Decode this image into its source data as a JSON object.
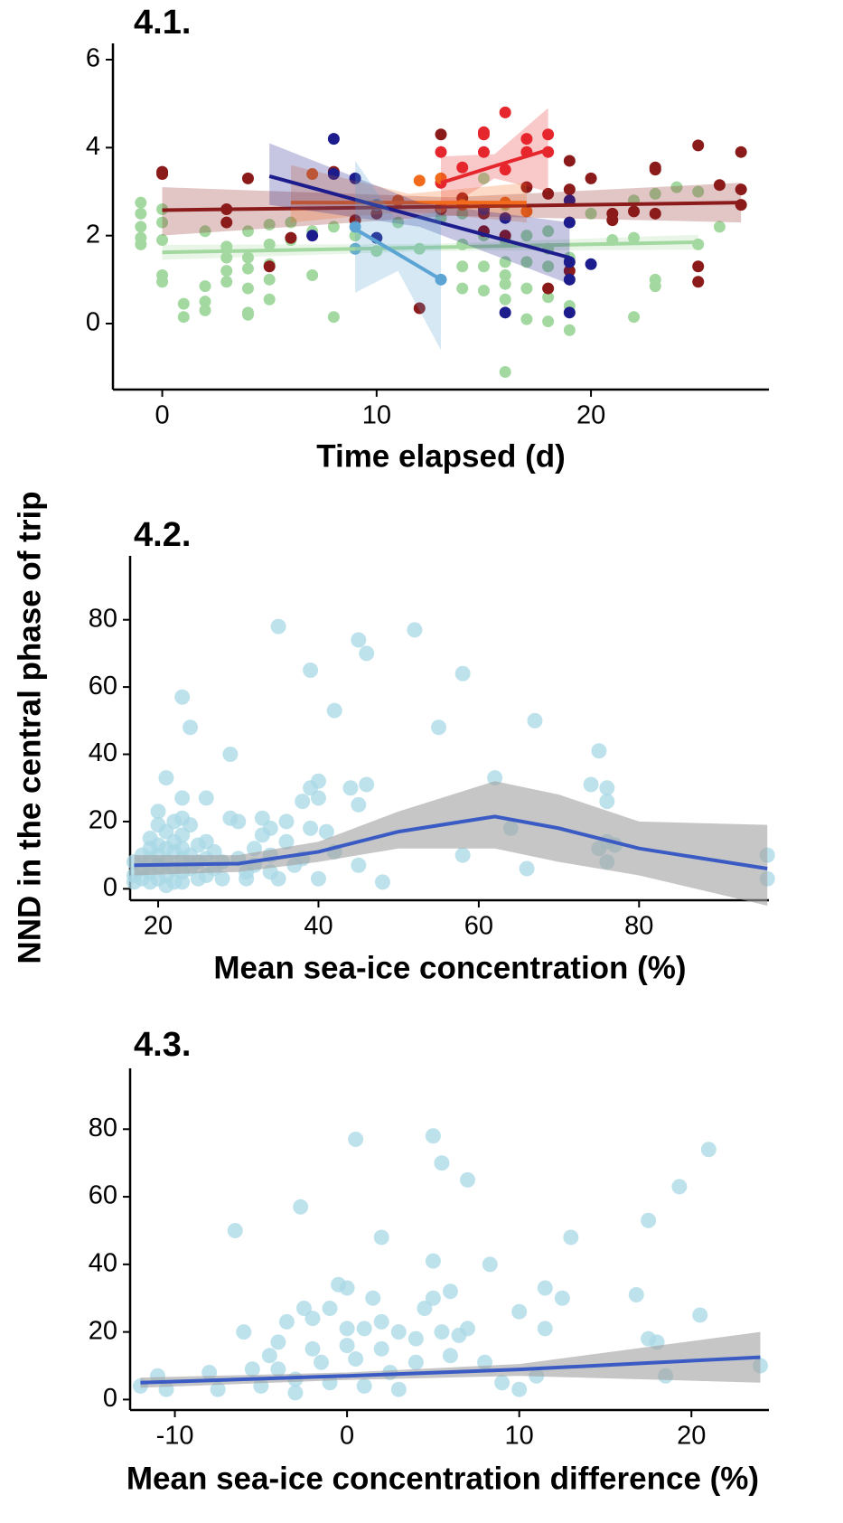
{
  "shared_ylabel": "NND in the central phase of trip",
  "chart_data": [
    {
      "type": "scatter",
      "title": "4.1.",
      "xlabel": "Time elapsed (d)",
      "xlim": [
        -2.3,
        28.3
      ],
      "ylim": [
        -1.5,
        6.37
      ],
      "xticks": [
        0,
        10,
        20
      ],
      "yticks": [
        0,
        2,
        4,
        6
      ],
      "series": [
        {
          "color": "#a3d8a0",
          "x": [
            -1,
            -1,
            -1,
            -1,
            -1,
            0,
            0,
            0,
            0,
            0,
            1,
            1,
            2,
            2,
            2,
            2,
            3,
            3,
            3,
            3,
            4,
            4,
            4,
            4,
            4,
            4,
            5,
            5,
            5,
            5,
            5,
            6,
            6,
            7,
            7,
            8,
            8,
            9,
            10,
            11,
            12,
            13,
            14,
            14,
            14,
            14,
            15,
            15,
            15,
            15,
            15,
            16,
            16,
            16,
            16,
            16,
            16,
            16,
            17,
            17,
            17,
            17,
            18,
            18,
            18,
            18,
            18,
            19,
            19,
            19,
            19,
            20,
            21,
            22,
            22,
            22,
            23,
            23,
            23,
            24,
            25,
            25,
            26
          ],
          "values": [
            2.75,
            2.5,
            2.2,
            1.95,
            1.8,
            2.6,
            2.3,
            1.9,
            1.1,
            0.95,
            0.45,
            0.15,
            0.85,
            0.5,
            0.3,
            2.1,
            1.75,
            1.5,
            1.2,
            0.95,
            2.1,
            1.5,
            1.25,
            0.8,
            0.25,
            0.2,
            2.25,
            1.8,
            1.35,
            1.0,
            0.55,
            2.3,
            1.9,
            2.1,
            1.1,
            2.2,
            0.15,
            2.0,
            1.65,
            2.3,
            1.7,
            2.4,
            2.5,
            1.8,
            1.3,
            0.8,
            3.3,
            2.6,
            2.0,
            1.3,
            0.75,
            2.7,
            1.9,
            1.4,
            1.1,
            0.9,
            0.55,
            -1.1,
            2.0,
            1.4,
            0.8,
            0.1,
            2.1,
            1.7,
            1.3,
            0.6,
            0.05,
            2.3,
            1.5,
            0.4,
            -0.15,
            2.5,
            1.9,
            2.8,
            1.95,
            0.15,
            2.95,
            1.0,
            0.85,
            3.1,
            3.0,
            1.8,
            2.2
          ],
          "fit": {
            "x": [
              0,
              12.5,
              25
            ],
            "values": [
              1.62,
              1.73,
              1.85
            ],
            "lower": [
              1.45,
              1.65,
              1.68
            ],
            "upper": [
              1.79,
              1.81,
              2.02
            ]
          }
        },
        {
          "color": "#8b1a1a",
          "x": [
            0,
            0,
            3,
            3,
            4,
            5,
            6,
            8,
            9,
            10,
            12,
            13,
            13,
            14,
            15,
            15,
            16,
            17,
            18,
            18,
            19,
            19,
            19,
            20,
            21,
            21,
            22,
            23,
            23,
            23,
            25,
            25,
            25,
            26,
            27,
            27,
            27
          ],
          "values": [
            3.45,
            3.4,
            2.6,
            2.3,
            3.3,
            1.3,
            1.95,
            3.45,
            2.35,
            2.5,
            0.35,
            4.3,
            2.6,
            2.85,
            2.5,
            2.1,
            2.0,
            3.1,
            2.95,
            0.8,
            3.7,
            3.05,
            1.2,
            3.3,
            2.5,
            2.35,
            2.55,
            3.5,
            3.55,
            2.5,
            4.05,
            1.3,
            0.95,
            3.15,
            3.9,
            3.05,
            2.7
          ],
          "fit": {
            "x": [
              0,
              13.5,
              27
            ],
            "values": [
              2.58,
              2.66,
              2.75
            ],
            "lower": [
              2.0,
              2.45,
              2.3
            ],
            "upper": [
              3.1,
              2.87,
              3.2
            ]
          }
        },
        {
          "color": "#e6262d",
          "x": [
            13,
            13,
            14,
            15,
            15,
            15,
            16,
            16,
            17,
            17,
            18,
            18
          ],
          "values": [
            3.9,
            3.2,
            3.55,
            4.35,
            4.3,
            3.9,
            4.8,
            3.5,
            4.2,
            3.9,
            4.3,
            3.9
          ],
          "fit": {
            "x": [
              13,
              15.5,
              18
            ],
            "values": [
              3.2,
              3.58,
              3.95
            ],
            "lower": [
              2.55,
              3.3,
              3.0
            ],
            "upper": [
              3.8,
              3.85,
              4.9
            ]
          }
        },
        {
          "color": "#f26a1b",
          "x": [
            7,
            11,
            12,
            13,
            13,
            14,
            16,
            17
          ],
          "values": [
            3.4,
            2.8,
            3.25,
            3.3,
            2.65,
            2.7,
            2.75,
            2.55
          ],
          "fit": {
            "x": [
              6,
              11.5,
              17
            ],
            "values": [
              2.75,
              2.75,
              2.75
            ],
            "lower": [
              2.3,
              2.55,
              2.3
            ],
            "upper": [
              3.6,
              2.95,
              3.2
            ]
          }
        },
        {
          "color": "#1c1c8c",
          "x": [
            7,
            8,
            8,
            9,
            10,
            15,
            16,
            16,
            19,
            19,
            19,
            19,
            19,
            20
          ],
          "values": [
            2.0,
            4.2,
            3.4,
            3.3,
            1.95,
            2.6,
            2.4,
            0.25,
            2.8,
            2.3,
            1.4,
            1.0,
            0.25,
            1.35
          ],
          "fit": {
            "x": [
              5,
              12,
              19
            ],
            "values": [
              3.35,
              2.42,
              1.5
            ],
            "lower": [
              2.7,
              2.2,
              0.9
            ],
            "upper": [
              4.1,
              2.75,
              2.3
            ]
          }
        },
        {
          "color": "#5ba4d4",
          "x": [
            9,
            10,
            13,
            9
          ],
          "values": [
            2.2,
            2.7,
            1.0,
            1.7
          ],
          "fit": {
            "x": [
              9,
              11,
              13
            ],
            "values": [
              2.15,
              1.58,
              1.0
            ],
            "lower": [
              0.7,
              1.2,
              -0.6
            ],
            "upper": [
              3.7,
              2.3,
              2.6
            ]
          }
        }
      ]
    },
    {
      "type": "scatter",
      "title": "4.2.",
      "xlabel": "Mean sea-ice concentration (%)",
      "xlim": [
        16.5,
        96.2
      ],
      "ylim": [
        -3.4,
        99
      ],
      "xticks": [
        20,
        40,
        60,
        80
      ],
      "yticks": [
        0,
        20,
        40,
        60,
        80
      ],
      "series": [
        {
          "color": "#a8d8e6",
          "x": [
            17,
            17,
            17,
            18,
            18,
            18,
            19,
            19,
            19,
            19,
            19,
            20,
            20,
            20,
            20,
            20,
            20,
            21,
            21,
            21,
            21,
            21,
            21,
            22,
            22,
            22,
            22,
            22,
            23,
            23,
            23,
            23,
            23,
            23,
            23,
            23,
            24,
            24,
            24,
            24,
            25,
            25,
            25,
            26,
            26,
            26,
            26,
            27,
            27,
            28,
            28,
            29,
            29,
            30,
            30,
            31,
            31,
            32,
            32,
            33,
            33,
            34,
            34,
            34,
            35,
            35,
            36,
            36,
            37,
            38,
            38,
            39,
            39,
            39,
            40,
            40,
            40,
            41,
            42,
            42,
            44,
            45,
            45,
            45,
            46,
            46,
            48,
            52,
            55,
            58,
            58,
            62,
            64,
            66,
            67,
            74,
            75,
            76,
            76,
            76,
            77,
            76,
            75,
            96,
            96
          ],
          "values": [
            8,
            4,
            2,
            10,
            6,
            3,
            15,
            12,
            9,
            5,
            2,
            23,
            19,
            13,
            10,
            7,
            3,
            33,
            17,
            12,
            8,
            4,
            1,
            20,
            14,
            11,
            6,
            2,
            57,
            27,
            21,
            16,
            12,
            9,
            5,
            2,
            48,
            19,
            10,
            6,
            13,
            8,
            3,
            27,
            14,
            9,
            4,
            11,
            6,
            8,
            3,
            21,
            40,
            20,
            9,
            5,
            3,
            12,
            7,
            21,
            16,
            18,
            10,
            5,
            78,
            3,
            20,
            14,
            7,
            26,
            9,
            65,
            30,
            18,
            32,
            27,
            3,
            17,
            53,
            11,
            30,
            74,
            7,
            25,
            70,
            31,
            2,
            77,
            48,
            64,
            10,
            33,
            18,
            6,
            50,
            31,
            41,
            30,
            26,
            14,
            13,
            8,
            12,
            10,
            3
          ],
          "fit": {
            "x": [
              17,
              30,
              40,
              50,
              62,
              70,
              80,
              96
            ],
            "values": [
              7,
              7.5,
              11,
              17,
              21.5,
              18,
              12,
              6
            ],
            "lower": [
              4,
              5,
              8,
              12,
              12,
              8,
              4,
              -5
            ],
            "upper": [
              10,
              10,
              14,
              23,
              32,
              28,
              20,
              19
            ]
          }
        }
      ]
    },
    {
      "type": "scatter",
      "title": "4.3.",
      "xlabel": "Mean sea-ice concentration difference (%)",
      "xlim": [
        -12.6,
        24.5
      ],
      "ylim": [
        -3.1,
        98
      ],
      "xticks": [
        -10,
        0,
        10,
        20
      ],
      "yticks": [
        0,
        20,
        40,
        60,
        80
      ],
      "series": [
        {
          "color": "#a8d8e6",
          "x": [
            -12,
            -11,
            -10.5,
            -8,
            -7.5,
            -6.5,
            -6,
            -5.5,
            -5,
            -4.5,
            -4,
            -4,
            -3.5,
            -3,
            -3,
            -2.7,
            -2.5,
            -2,
            -2,
            -1.5,
            -1,
            -1,
            -0.5,
            0,
            0,
            0,
            0.5,
            0.5,
            1,
            1,
            1.5,
            2,
            2,
            2,
            2.5,
            3,
            3,
            4,
            4,
            4.5,
            5,
            5,
            5,
            5.5,
            5.5,
            6,
            6,
            6.5,
            7,
            7,
            8,
            8.3,
            9,
            10,
            10,
            11,
            11.5,
            11.5,
            12.5,
            13,
            16.8,
            17.5,
            17.5,
            18,
            18.5,
            19.3,
            20.5,
            21,
            24
          ],
          "values": [
            4,
            7,
            3,
            8,
            3,
            50,
            20,
            9,
            4,
            13,
            17,
            9,
            23,
            6,
            2,
            57,
            27,
            24,
            15,
            11,
            27,
            5,
            34,
            33,
            16,
            21,
            12,
            77,
            4,
            21,
            30,
            23,
            48,
            15,
            8,
            20,
            3,
            18,
            11,
            27,
            78,
            30,
            41,
            70,
            20,
            32,
            13,
            19,
            65,
            21,
            11,
            40,
            5,
            26,
            3,
            7,
            33,
            21,
            30,
            48,
            31,
            53,
            18,
            17,
            7,
            63,
            25,
            74,
            10
          ],
          "fit": {
            "x": [
              -12,
              0,
              10,
              24
            ],
            "values": [
              5.0,
              7.0,
              8.9,
              12.5
            ],
            "lower": [
              3.5,
              5.8,
              7,
              5
            ],
            "upper": [
              6.5,
              8,
              10.5,
              20
            ]
          }
        }
      ]
    }
  ]
}
